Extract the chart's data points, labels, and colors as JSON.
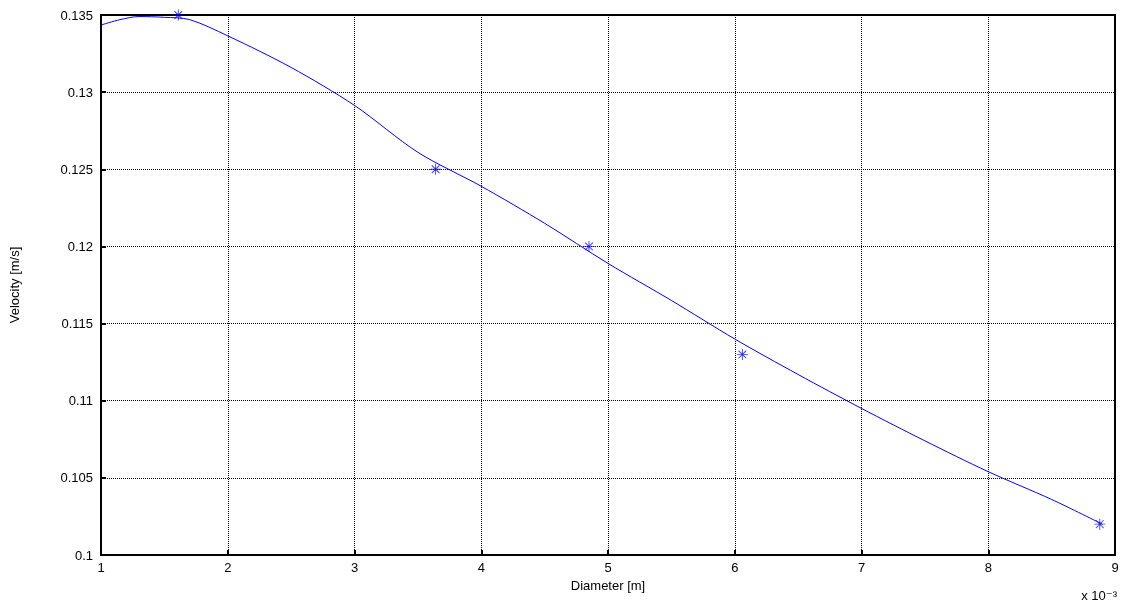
{
  "chart_data": {
    "type": "line",
    "xlabel": "Diameter [m]",
    "ylabel": "Velocity [m/s]",
    "annotations": [
      "x 10⁻³"
    ],
    "xlim": [
      1,
      9
    ],
    "xticks": [
      1,
      2,
      3,
      4,
      5,
      6,
      7,
      8,
      9
    ],
    "ylim": [
      0.1,
      0.135
    ],
    "yticks": [
      0.1,
      0.105,
      0.11,
      0.115,
      0.12,
      0.125,
      0.13,
      0.135
    ],
    "grid": true,
    "series": [
      {
        "color": "#0000ff",
        "marker": "none",
        "line_style": "solid",
        "x": [
          1,
          1.15,
          1.3,
          1.5,
          1.7,
          2,
          2.5,
          3,
          3.5,
          4,
          4.5,
          5,
          5.5,
          6,
          6.5,
          7,
          7.5,
          8,
          8.5,
          8.9
        ],
        "values": [
          0.13435,
          0.1347,
          0.1349,
          0.13485,
          0.1347,
          0.13365,
          0.1316,
          0.12914,
          0.1261,
          0.1239,
          0.1215,
          0.1189,
          0.1165,
          0.114,
          0.1117,
          0.1095,
          0.1074,
          0.1054,
          0.1036,
          0.102
        ]
      },
      {
        "type": "scatter",
        "color": "#0000ff",
        "marker": "star",
        "x": [
          1.61,
          3.64,
          4.85,
          6.06,
          8.88
        ],
        "values": [
          0.135,
          0.125,
          0.12,
          0.113,
          0.102
        ]
      }
    ]
  }
}
